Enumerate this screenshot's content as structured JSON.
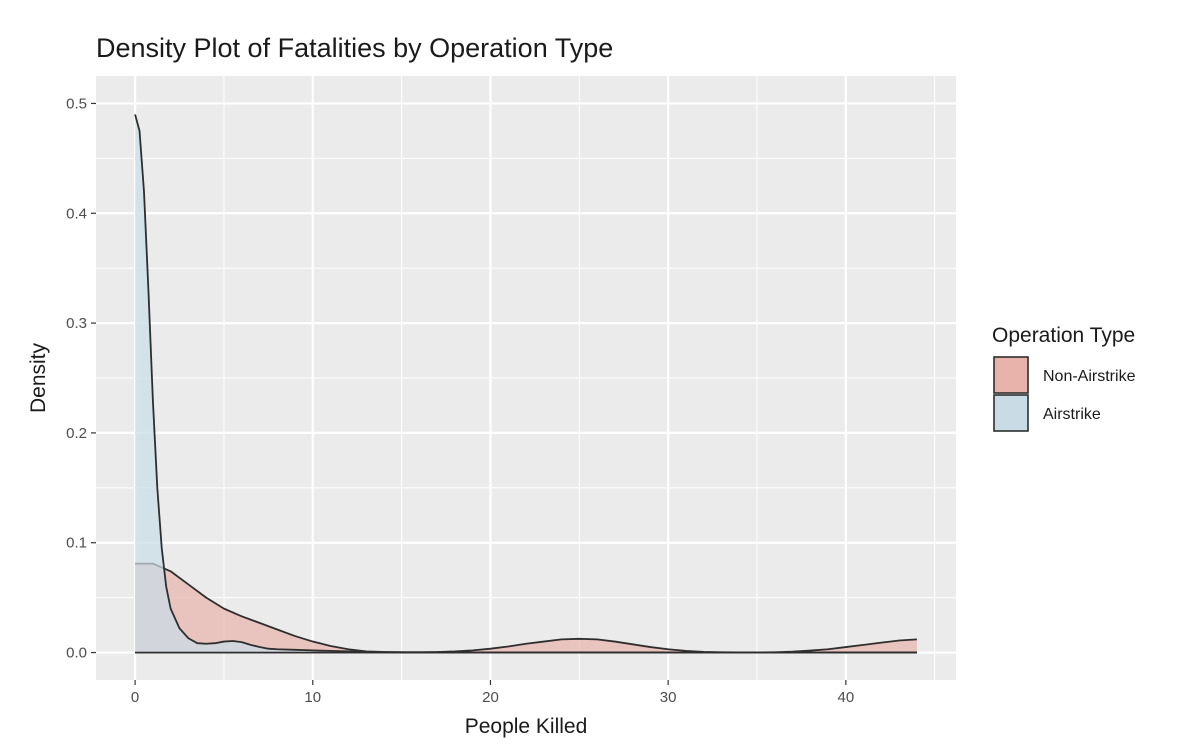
{
  "chart_data": {
    "type": "area",
    "title": "Density Plot of Fatalities by Operation Type",
    "xlabel": "People Killed",
    "ylabel": "Density",
    "xlim": [
      -2.2,
      46.2
    ],
    "ylim": [
      -0.025,
      0.525
    ],
    "xticks": [
      0,
      10,
      20,
      30,
      40
    ],
    "yticks": [
      0.0,
      0.1,
      0.2,
      0.3,
      0.4,
      0.5
    ],
    "xtick_labels": [
      "0",
      "10",
      "20",
      "30",
      "40"
    ],
    "ytick_labels": [
      "0.0",
      "0.1",
      "0.2",
      "0.3",
      "0.4",
      "0.5"
    ],
    "grid": true,
    "legend": {
      "title": "Operation Type",
      "position": "right"
    },
    "series": [
      {
        "name": "Non-Airstrike",
        "color": "#e8b3aa",
        "x": [
          0,
          1,
          2,
          3,
          4,
          5,
          6,
          7,
          8,
          9,
          10,
          11,
          12,
          13,
          14,
          15,
          16,
          17,
          18,
          19,
          20,
          21,
          22,
          23,
          24,
          25,
          26,
          27,
          28,
          29,
          30,
          31,
          32,
          33,
          34,
          35,
          36,
          37,
          38,
          39,
          40,
          41,
          42,
          43,
          44
        ],
        "values": [
          0.081,
          0.081,
          0.074,
          0.062,
          0.05,
          0.04,
          0.033,
          0.027,
          0.021,
          0.015,
          0.01,
          0.006,
          0.003,
          0.001,
          0.0005,
          0.0002,
          0.0002,
          0.0005,
          0.001,
          0.002,
          0.0035,
          0.0055,
          0.008,
          0.01,
          0.012,
          0.0125,
          0.012,
          0.01,
          0.0075,
          0.005,
          0.003,
          0.0015,
          0.0006,
          0.0002,
          0.0001,
          0.0001,
          0.0003,
          0.0008,
          0.0018,
          0.003,
          0.005,
          0.007,
          0.009,
          0.011,
          0.012
        ]
      },
      {
        "name": "Airstrike",
        "color": "#c9dce6",
        "x": [
          0,
          0.25,
          0.5,
          0.75,
          1,
          1.25,
          1.5,
          1.75,
          2,
          2.5,
          3,
          3.5,
          4,
          4.5,
          5,
          5.5,
          6,
          6.5,
          7,
          7.5,
          8,
          9,
          10,
          11,
          12,
          13,
          14,
          16,
          18,
          20,
          22,
          24,
          26,
          28,
          30,
          32,
          34,
          36,
          38,
          40,
          42,
          44
        ],
        "values": [
          0.49,
          0.475,
          0.42,
          0.33,
          0.23,
          0.15,
          0.095,
          0.06,
          0.04,
          0.022,
          0.013,
          0.0085,
          0.008,
          0.0085,
          0.01,
          0.0105,
          0.0095,
          0.007,
          0.005,
          0.0035,
          0.003,
          0.0025,
          0.002,
          0.0015,
          0.001,
          0.0006,
          0.0004,
          0.0002,
          0.0001,
          0.0001,
          0.0001,
          0.0001,
          0.0001,
          0.0001,
          0.0001,
          0.0001,
          0.0001,
          0.0001,
          0.0001,
          0.0001,
          0.0001,
          0.0001
        ]
      }
    ]
  },
  "colors": {
    "panel_background": "#ebebeb",
    "grid_line": "#ffffff",
    "outline": "#2e2e2e"
  }
}
